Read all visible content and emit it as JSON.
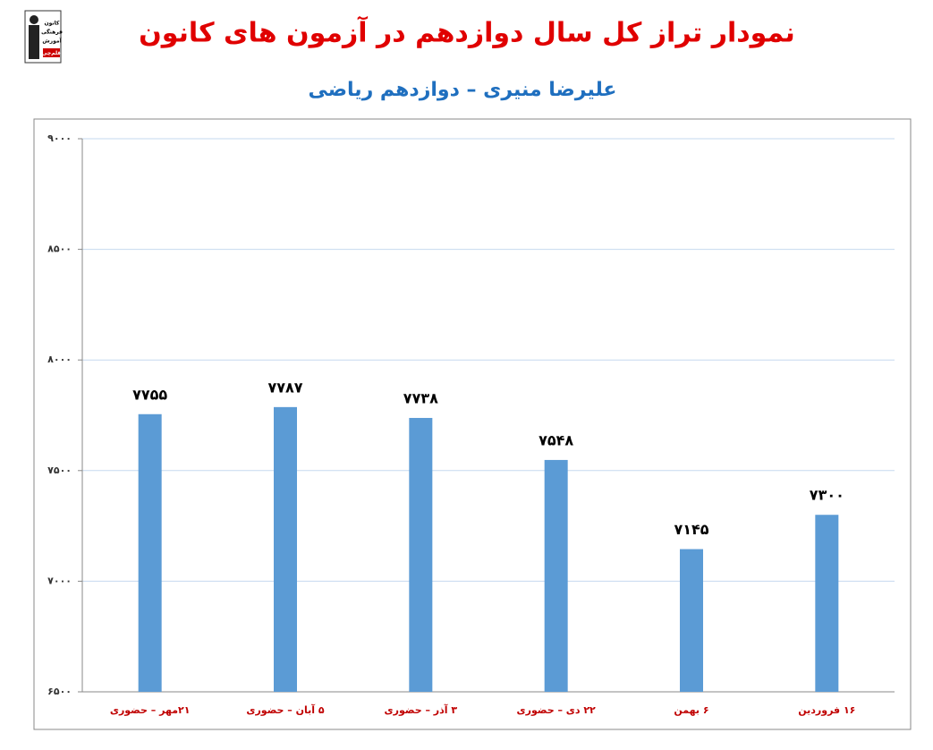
{
  "logo": {
    "lines": [
      "کانون",
      "فرهنگی",
      "آموزش",
      "قلم‌چی"
    ]
  },
  "chart_data": {
    "type": "bar",
    "title": "نمودار تراز کل سال دوازدهم در آزمون های کانون",
    "subtitle": "علیرضا منیری – دوازدهم ریاضی",
    "categories": [
      "۲۱مهر – حضوری",
      "۵ آبان – حضوری",
      "۳ آذر – حضوری",
      "۲۲ دی – حضوری",
      "۶ بهمن",
      "۱۶ فروردین"
    ],
    "values": [
      7755,
      7787,
      7738,
      7548,
      7145,
      7300
    ],
    "value_labels": [
      "۷۷۵۵",
      "۷۷۸۷",
      "۷۷۳۸",
      "۷۵۴۸",
      "۷۱۴۵",
      "۷۳۰۰"
    ],
    "color": "#5b9bd5",
    "ylim": [
      6500,
      9000
    ],
    "yticks": [
      {
        "value": 6500,
        "label": "۶۵۰۰"
      },
      {
        "value": 7000,
        "label": "۷۰۰۰"
      },
      {
        "value": 7500,
        "label": "۷۵۰۰"
      },
      {
        "value": 8000,
        "label": "۸۰۰۰"
      },
      {
        "value": 8500,
        "label": "۸۵۰۰"
      },
      {
        "value": 9000,
        "label": "۹۰۰۰"
      }
    ],
    "grid": true
  }
}
